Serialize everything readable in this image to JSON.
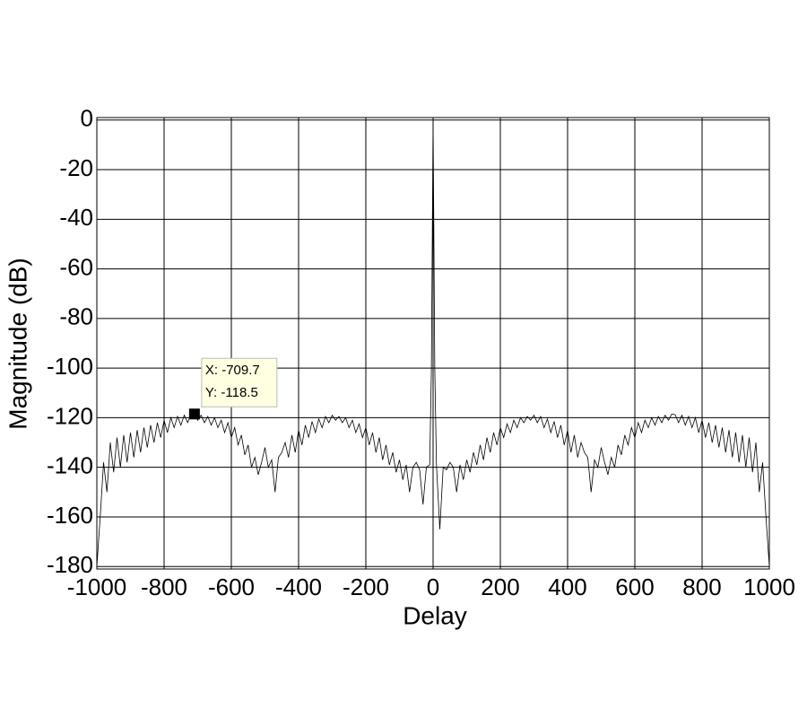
{
  "chart_data": {
    "type": "line",
    "xlabel": "Delay",
    "ylabel": "Magnitude (dB)",
    "xlim": [
      -1000,
      1000
    ],
    "ylim": [
      -181,
      1
    ],
    "xticks": [
      -1000,
      -800,
      -600,
      -400,
      -200,
      0,
      200,
      400,
      600,
      800,
      1000
    ],
    "yticks": [
      0,
      -20,
      -40,
      -60,
      -80,
      -100,
      -120,
      -140,
      -160,
      -180
    ],
    "grid": true,
    "color": "#000000",
    "x": [
      -1000,
      -990,
      -980,
      -970,
      -960,
      -950,
      -940,
      -930,
      -920,
      -910,
      -900,
      -890,
      -880,
      -870,
      -860,
      -850,
      -840,
      -830,
      -820,
      -810,
      -800,
      -790,
      -780,
      -770,
      -760,
      -750,
      -740,
      -730,
      -720,
      -710,
      -700,
      -690,
      -680,
      -670,
      -660,
      -650,
      -640,
      -630,
      -620,
      -610,
      -600,
      -590,
      -580,
      -570,
      -560,
      -550,
      -540,
      -530,
      -520,
      -510,
      -500,
      -490,
      -480,
      -470,
      -460,
      -450,
      -440,
      -430,
      -420,
      -410,
      -400,
      -390,
      -380,
      -370,
      -360,
      -350,
      -340,
      -330,
      -320,
      -310,
      -300,
      -290,
      -280,
      -270,
      -260,
      -250,
      -240,
      -230,
      -220,
      -210,
      -200,
      -190,
      -180,
      -170,
      -160,
      -150,
      -140,
      -130,
      -120,
      -110,
      -100,
      -90,
      -80,
      -70,
      -60,
      -50,
      -40,
      -30,
      -20,
      -10,
      -5,
      0,
      5,
      10,
      20,
      30,
      40,
      50,
      60,
      70,
      80,
      90,
      100,
      110,
      120,
      130,
      140,
      150,
      160,
      170,
      180,
      190,
      200,
      210,
      220,
      230,
      240,
      250,
      260,
      270,
      280,
      290,
      300,
      310,
      320,
      330,
      340,
      350,
      360,
      370,
      380,
      390,
      400,
      410,
      420,
      430,
      440,
      450,
      460,
      470,
      480,
      490,
      500,
      510,
      520,
      530,
      540,
      550,
      560,
      570,
      580,
      590,
      600,
      610,
      620,
      630,
      640,
      650,
      660,
      670,
      680,
      690,
      700,
      710,
      720,
      730,
      740,
      750,
      760,
      770,
      780,
      790,
      800,
      810,
      820,
      830,
      840,
      850,
      860,
      870,
      880,
      890,
      900,
      910,
      920,
      930,
      940,
      950,
      960,
      970,
      980,
      990,
      1000
    ],
    "values": [
      -180,
      -160,
      -138,
      -150,
      -130,
      -142,
      -128,
      -140,
      -127,
      -138,
      -126,
      -136,
      -125,
      -134,
      -124,
      -132,
      -123,
      -130,
      -122,
      -128,
      -121,
      -126,
      -120,
      -124,
      -119.5,
      -123,
      -119,
      -122,
      -118.8,
      -118.5,
      -121,
      -119,
      -122,
      -119.5,
      -123,
      -120,
      -124,
      -121,
      -126,
      -122,
      -128,
      -124,
      -131,
      -127,
      -135,
      -131,
      -140,
      -136,
      -143,
      -138,
      -132,
      -140,
      -137,
      -150,
      -136,
      -134,
      -130,
      -136,
      -127,
      -134,
      -125,
      -131,
      -123,
      -128,
      -121.5,
      -126,
      -120.5,
      -124,
      -119.5,
      -122,
      -119,
      -121,
      -119.5,
      -122,
      -120,
      -124,
      -121,
      -126,
      -122.5,
      -128,
      -124,
      -131,
      -126,
      -134,
      -128,
      -137,
      -131,
      -139,
      -134,
      -142,
      -137,
      -145,
      -139,
      -150,
      -140,
      -138,
      -141,
      -155,
      -140,
      -139,
      -100,
      0,
      -100,
      -139,
      -165,
      -140,
      -141,
      -138,
      -140,
      -150,
      -139,
      -145,
      -137,
      -142,
      -134,
      -139,
      -131,
      -137,
      -128,
      -134,
      -126,
      -131,
      -124,
      -128,
      -122.5,
      -126,
      -121,
      -124,
      -120,
      -122,
      -119.5,
      -121,
      -119,
      -122,
      -119.5,
      -124,
      -120.5,
      -126,
      -121.5,
      -128,
      -123,
      -131,
      -125,
      -134,
      -127,
      -136,
      -130,
      -134,
      -136,
      -150,
      -137,
      -140,
      -132,
      -138,
      -143,
      -136,
      -140,
      -131,
      -135,
      -127,
      -131,
      -124,
      -128,
      -122,
      -126,
      -121,
      -124,
      -120,
      -123,
      -119.5,
      -122,
      -119,
      -121,
      -118.5,
      -118.8,
      -122,
      -119,
      -123,
      -119.5,
      -124,
      -120,
      -126,
      -121,
      -128,
      -122,
      -130,
      -123,
      -132,
      -124,
      -134,
      -125,
      -136,
      -126,
      -138,
      -127,
      -140,
      -128,
      -142,
      -130,
      -150,
      -138,
      -160,
      -180
    ],
    "annotation": {
      "lines": [
        "X: -709.7",
        "Y: -118.5"
      ],
      "x": -709.7,
      "y": -118.5
    }
  }
}
